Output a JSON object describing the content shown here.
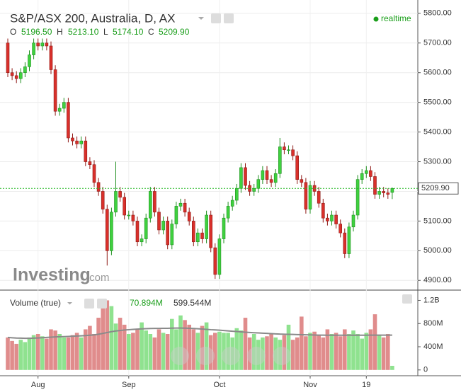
{
  "header": {
    "title": "S&P/ASX 200, Australia, D, AX",
    "realtime": "realtime",
    "legend": {
      "o_label": "O",
      "o": "5196.50",
      "h_label": "H",
      "h": "5213.10",
      "l_label": "L",
      "l": "5174.10",
      "c_label": "C",
      "c": "5209.90"
    },
    "logo": "Investing",
    "logo_suffix": ".com"
  },
  "chart_data": [
    {
      "type": "candlestick",
      "categories": [
        null,
        null,
        null,
        null,
        null,
        null,
        null,
        "Aug",
        null,
        null,
        null,
        null,
        null,
        null,
        null,
        null,
        null,
        null,
        null,
        null,
        null,
        null,
        null,
        null,
        null,
        null,
        null,
        null,
        "Sep",
        null,
        null,
        null,
        null,
        null,
        null,
        null,
        null,
        null,
        null,
        null,
        null,
        null,
        null,
        null,
        null,
        null,
        null,
        null,
        null,
        "Oct",
        null,
        null,
        null,
        null,
        null,
        null,
        null,
        null,
        null,
        null,
        null,
        null,
        null,
        null,
        null,
        null,
        null,
        null,
        null,
        null,
        "Nov",
        null,
        null,
        null,
        null,
        null,
        null,
        null,
        null,
        null,
        null,
        null,
        null,
        "19",
        null,
        null,
        null,
        null,
        null,
        null
      ],
      "open": [
        5700,
        5600,
        5590,
        5580,
        5600,
        5620,
        5660,
        5700,
        5690,
        5700,
        5690,
        5610,
        5470,
        5480,
        5500,
        5380,
        5370,
        5360,
        5370,
        5300,
        5290,
        5230,
        5200,
        5140,
        5000,
        5130,
        5200,
        5180,
        5120,
        5120,
        5100,
        5030,
        5040,
        5110,
        5200,
        5130,
        5070,
        5100,
        5020,
        5090,
        5150,
        5160,
        5130,
        5100,
        5030,
        5060,
        5040,
        5120,
        5010,
        4920,
        5040,
        5110,
        5150,
        5170,
        5210,
        5280,
        5220,
        5200,
        5210,
        5240,
        5270,
        5240,
        5230,
        5260,
        5350,
        5340,
        5340,
        5320,
        5240,
        5230,
        5140,
        5220,
        5200,
        5160,
        5110,
        5100,
        5120,
        5090,
        5060,
        4990,
        5080,
        5120,
        5240,
        5260,
        5270,
        5250,
        5190,
        5200,
        5195,
        5196.5
      ],
      "high": [
        5715,
        5615,
        5605,
        5615,
        5635,
        5675,
        5715,
        5715,
        5715,
        5715,
        5705,
        5625,
        5495,
        5515,
        5515,
        5395,
        5385,
        5385,
        5385,
        5315,
        5305,
        5245,
        5215,
        5155,
        5145,
        5300,
        5215,
        5195,
        5135,
        5135,
        5115,
        5055,
        5125,
        5215,
        5215,
        5145,
        5115,
        5115,
        5105,
        5165,
        5175,
        5175,
        5145,
        5115,
        5075,
        5075,
        5135,
        5135,
        5025,
        5055,
        5125,
        5165,
        5185,
        5225,
        5295,
        5295,
        5235,
        5225,
        5255,
        5285,
        5285,
        5255,
        5275,
        5380,
        5365,
        5355,
        5355,
        5335,
        5255,
        5245,
        5235,
        5235,
        5215,
        5175,
        5125,
        5135,
        5135,
        5105,
        5075,
        5095,
        5135,
        5255,
        5275,
        5285,
        5285,
        5265,
        5215,
        5215,
        5210,
        5213.1
      ],
      "low": [
        5585,
        5575,
        5565,
        5565,
        5585,
        5605,
        5645,
        5675,
        5675,
        5675,
        5595,
        5455,
        5455,
        5465,
        5365,
        5355,
        5345,
        5345,
        5285,
        5275,
        5215,
        5185,
        5125,
        4950,
        4985,
        5115,
        5165,
        5105,
        5105,
        5085,
        5015,
        5015,
        5025,
        5095,
        5115,
        5055,
        5055,
        5005,
        5005,
        5075,
        5135,
        5115,
        5085,
        5015,
        5015,
        5025,
        5025,
        4995,
        4905,
        4905,
        5025,
        5095,
        5135,
        5155,
        5195,
        5205,
        5185,
        5185,
        5195,
        5225,
        5225,
        5215,
        5215,
        5245,
        5325,
        5325,
        5305,
        5225,
        5215,
        5125,
        5125,
        5185,
        5145,
        5095,
        5085,
        5085,
        5075,
        5045,
        4975,
        4975,
        5065,
        5105,
        5225,
        5245,
        5235,
        5175,
        5175,
        5180,
        5175,
        5174.1
      ],
      "close": [
        5600,
        5590,
        5580,
        5600,
        5620,
        5660,
        5700,
        5690,
        5700,
        5690,
        5610,
        5470,
        5480,
        5500,
        5380,
        5370,
        5360,
        5370,
        5300,
        5290,
        5230,
        5200,
        5140,
        5000,
        5130,
        5200,
        5180,
        5120,
        5120,
        5100,
        5030,
        5040,
        5110,
        5200,
        5130,
        5070,
        5100,
        5020,
        5090,
        5150,
        5160,
        5130,
        5100,
        5030,
        5060,
        5040,
        5120,
        5010,
        4920,
        5040,
        5110,
        5150,
        5170,
        5210,
        5280,
        5220,
        5200,
        5210,
        5240,
        5270,
        5240,
        5230,
        5260,
        5350,
        5340,
        5340,
        5320,
        5240,
        5230,
        5140,
        5220,
        5200,
        5160,
        5110,
        5100,
        5120,
        5090,
        5060,
        4990,
        5080,
        5120,
        5240,
        5260,
        5270,
        5250,
        5190,
        5200,
        5195,
        5190,
        5209.9
      ],
      "colors": {
        "up": "#3fd13f",
        "down": "#d9302b",
        "up_edge": "#1f8f1f",
        "down_edge": "#8f1a16",
        "last": "#22b822"
      },
      "ylim": [
        4872,
        5833
      ],
      "yticks": [
        {
          "value": 4900,
          "label": "4900.00"
        },
        {
          "value": 5000,
          "label": "5000.00"
        },
        {
          "value": 5100,
          "label": "5100.00"
        },
        {
          "value": 5200,
          "label": "5200.00"
        },
        {
          "value": 5300,
          "label": "5300.00"
        },
        {
          "value": 5400,
          "label": "5400.00"
        },
        {
          "value": 5500,
          "label": "5500.00"
        },
        {
          "value": 5600,
          "label": "5600.00"
        },
        {
          "value": 5700,
          "label": "5700.00"
        },
        {
          "value": 5800,
          "label": "5800.00"
        }
      ],
      "last_price_label": "5209.90",
      "grid": true
    },
    {
      "type": "volume",
      "title": "Volume (true)",
      "volume": [
        560,
        500,
        450,
        520,
        480,
        560,
        600,
        620,
        580,
        540,
        700,
        680,
        620,
        560,
        560,
        600,
        640,
        560,
        700,
        760,
        620,
        900,
        1150,
        1200,
        1100,
        800,
        900,
        780,
        620,
        640,
        700,
        820,
        680,
        620,
        560,
        700,
        640,
        620,
        880,
        700,
        940,
        860,
        780,
        700,
        640,
        760,
        820,
        600,
        640,
        660,
        640,
        640,
        560,
        720,
        680,
        900,
        560,
        620,
        520,
        560,
        580,
        620,
        560,
        520,
        600,
        780,
        520,
        560,
        920,
        580,
        640,
        660,
        600,
        560,
        700,
        620,
        640,
        580,
        700,
        620,
        680,
        620,
        540,
        640,
        700,
        960,
        600,
        560,
        620,
        70.894
      ],
      "ma": [
        560,
        555,
        550,
        548,
        545,
        545,
        548,
        552,
        556,
        560,
        565,
        570,
        572,
        575,
        578,
        582,
        585,
        588,
        592,
        598,
        605,
        615,
        630,
        645,
        660,
        672,
        680,
        688,
        694,
        700,
        704,
        708,
        712,
        714,
        716,
        716,
        718,
        718,
        720,
        722,
        722,
        720,
        718,
        714,
        710,
        706,
        700,
        694,
        690,
        686,
        680,
        674,
        668,
        662,
        656,
        650,
        646,
        642,
        638,
        634,
        630,
        626,
        622,
        618,
        616,
        614,
        612,
        610,
        608,
        606,
        604,
        602,
        600,
        600,
        598,
        598,
        598,
        598,
        598,
        598,
        598,
        598,
        598,
        598,
        600,
        600,
        600,
        600,
        600,
        599.544
      ],
      "volume_label": "70.894M",
      "ma_label": "599.544M",
      "colors": {
        "up": "#8fe28f",
        "down": "#e08c8c",
        "ma": "#8a8a8a",
        "volume_text": "#1a9e1a"
      },
      "ylim": [
        -100,
        1340
      ],
      "yticks": [
        0,
        {
          "value": 400,
          "label": "400M"
        },
        {
          "value": 800,
          "label": "800M"
        },
        {
          "value": 1200,
          "label": "1.2B"
        }
      ]
    }
  ]
}
